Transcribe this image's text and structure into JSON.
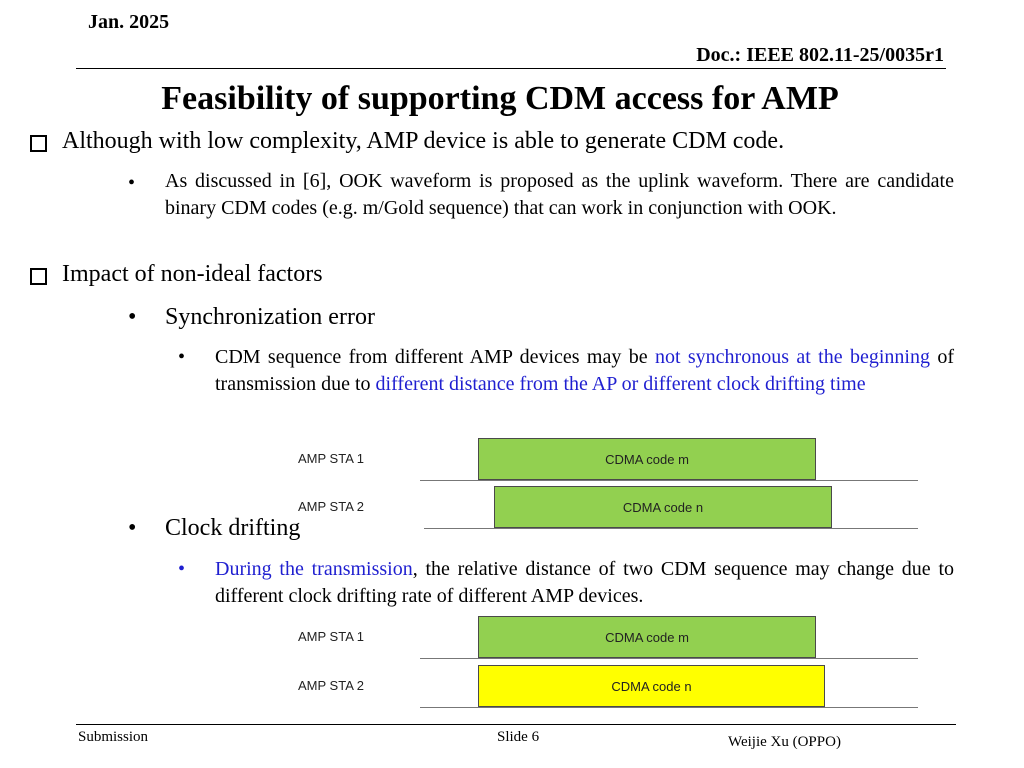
{
  "header": {
    "date": "Jan. 2025",
    "doc": "Doc.: IEEE 802.11-25/0035r1"
  },
  "title": "Feasibility of supporting CDM access for AMP",
  "bullets": {
    "b1": "Although with low complexity, AMP device is able to generate CDM code.",
    "b1_sub": "As discussed in [6], OOK waveform is proposed as the uplink waveform. There are candidate binary CDM codes (e.g. m/Gold sequence) that can work in conjunction with OOK.",
    "b2": "Impact of non-ideal factors",
    "sync_heading": "Synchronization error",
    "sync_text": {
      "p1": "CDM sequence from different AMP devices may be ",
      "p2": "not synchronous at the beginning",
      "p3": " of transmission due to ",
      "p4": "different distance from the AP or different clock drifting time"
    },
    "clock_heading": "Clock drifting",
    "clock_text": {
      "p1": "During the transmission",
      "p2": ", the relative distance of two CDM sequence may change due to different clock drifting rate of different AMP devices."
    }
  },
  "diagram1": {
    "sta1": "AMP STA 1",
    "sta2": "AMP STA 2",
    "code1": "CDMA code m",
    "code2": "CDMA code n",
    "color1": "#92d050",
    "color2": "#92d050"
  },
  "diagram2": {
    "sta1": "AMP STA 1",
    "sta2": "AMP STA 2",
    "code1": "CDMA code m",
    "code2": "CDMA code n",
    "color1": "#92d050",
    "color2": "#ffff00"
  },
  "footer": {
    "left": "Submission",
    "center": "Slide 6",
    "right": "Weijie Xu (OPPO)"
  }
}
